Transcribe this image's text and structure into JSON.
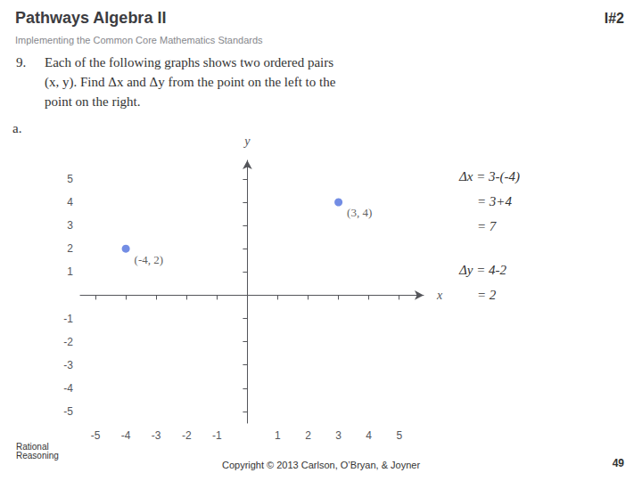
{
  "chart_data": {
    "type": "scatter",
    "title": "Pathways Algebra II",
    "subtitle": "Implementing the Common Core Mathematics Standards",
    "annotations": [
      "I#2",
      "9.",
      "Each of the following graphs shows two ordered pairs",
      "(x, y). Find Δx and Δy from the point on the left to the",
      "point on the right.",
      "a.",
      "Δx = 3-(-4)",
      "= 3+4",
      "= 7",
      "Δy = 4-2",
      "= 2",
      "Rational\nReasoning",
      "Copyright © 2013 Carlson, O’Bryan, & Joyner",
      "49"
    ],
    "x": [
      -4,
      3
    ],
    "values": [
      2,
      4
    ],
    "value_labels": [
      "(-4, 2)",
      "(3, 4)"
    ],
    "data_labels": true,
    "xlabel": "x",
    "ylabel": "y",
    "xlim": [
      -5.5,
      5.8
    ],
    "ylim": [
      -5.5,
      5.8
    ],
    "xticks": [
      -5,
      -4,
      -3,
      -2,
      -1,
      1,
      2,
      3,
      4,
      5
    ],
    "yticks": [
      -5,
      -4,
      -3,
      -2,
      -1,
      1,
      2,
      3,
      4,
      5
    ],
    "grid": false
  }
}
